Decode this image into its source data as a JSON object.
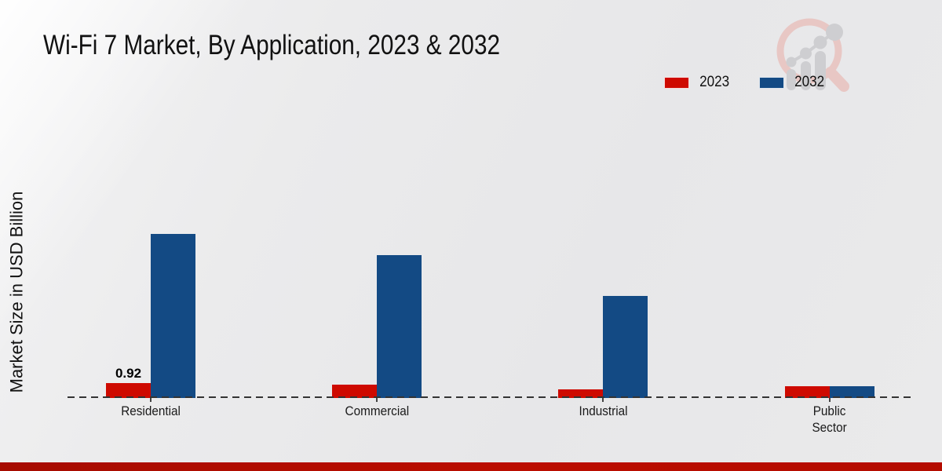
{
  "page": {
    "title": "Wi-Fi 7 Market, By Application, 2023 & 2032",
    "y_axis_label": "Market Size in USD Billion"
  },
  "legend": {
    "items": [
      {
        "label": "2023",
        "color": "#ce0a00"
      },
      {
        "label": "2032",
        "color": "#134a84"
      }
    ]
  },
  "chart_data": {
    "type": "bar",
    "title": "Wi-Fi 7 Market, By Application, 2023 & 2032",
    "xlabel": "",
    "ylabel": "Market Size in USD Billion",
    "categories": [
      "Residential",
      "Commercial",
      "Industrial",
      "Public Sector"
    ],
    "series": [
      {
        "name": "2023",
        "color": "#ce0a00",
        "values": [
          0.92,
          0.82,
          0.55,
          0.73
        ]
      },
      {
        "name": "2032",
        "color": "#134a84",
        "values": [
          10.1,
          8.8,
          6.3,
          0.72
        ]
      }
    ],
    "data_labels": [
      {
        "series": "2023",
        "category": "Residential",
        "text": "0.92"
      }
    ],
    "ylim": [
      0,
      10.8
    ],
    "grid": false,
    "y_tick_labels_shown": false,
    "legend_position": "top-right",
    "baseline_style": "dashed"
  },
  "branding": {
    "logo_icon": "magnifier-bar-chart-logo"
  }
}
